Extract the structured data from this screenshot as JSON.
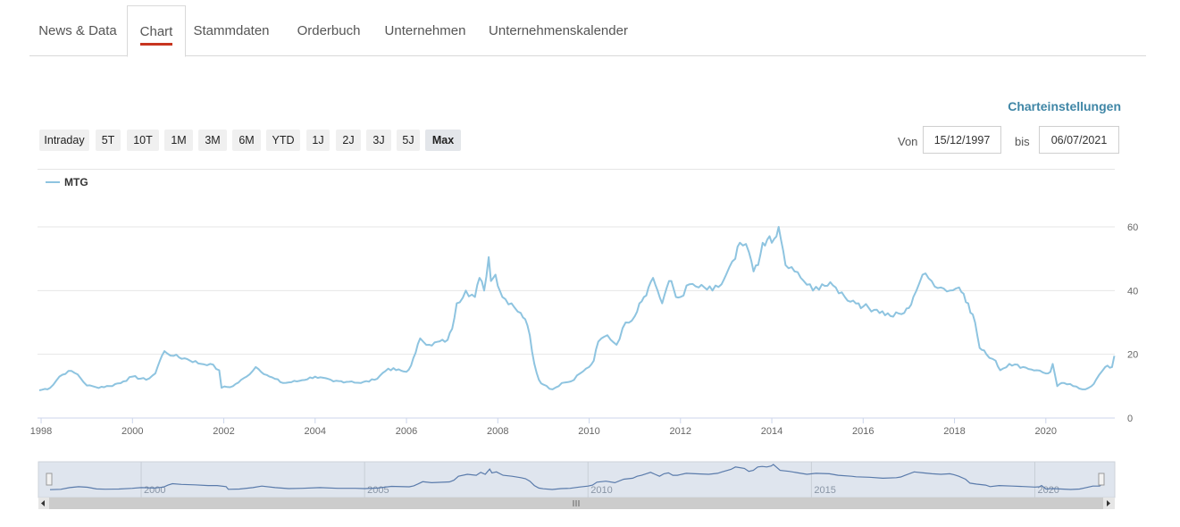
{
  "tabs": [
    {
      "label": "News & Data"
    },
    {
      "label": "Chart"
    },
    {
      "label": "Stammdaten"
    },
    {
      "label": "Orderbuch"
    },
    {
      "label": "Unternehmen"
    },
    {
      "label": "Unternehmenskalender"
    }
  ],
  "active_tab": "Chart",
  "settings_link": "Charteinstellungen",
  "ranges": [
    "Intraday",
    "5T",
    "10T",
    "1M",
    "3M",
    "6M",
    "YTD",
    "1J",
    "2J",
    "3J",
    "5J",
    "Max"
  ],
  "selected_range": "Max",
  "date_from": {
    "label": "Von",
    "value": "15/12/1997"
  },
  "date_to": {
    "label": "bis",
    "value": "06/07/2021"
  },
  "colors": {
    "series": "#8ec4e0",
    "navigator_line": "#5a7bab",
    "navigator_fill": "#dfe5ee",
    "active_tab_underline": "#c8351f",
    "link": "#3f86a6"
  },
  "navigator": {
    "tick_labels": [
      "2000",
      "2005",
      "2010",
      "2015",
      "2020"
    ],
    "grip_icon": "grip-lines-icon",
    "left_arrow_icon": "arrow-left-icon",
    "right_arrow_icon": "arrow-right-icon"
  },
  "chart_data": {
    "type": "line",
    "legend_position": "top-left",
    "series": [
      {
        "name": "MTG",
        "color": "#8ec4e0"
      }
    ],
    "xlabel": "",
    "ylabel": "",
    "ylim": [
      0,
      60
    ],
    "y_ticks": [
      "0",
      "20",
      "40",
      "60"
    ],
    "xlim": [
      1997.96,
      2021.51
    ],
    "x_ticks": [
      "1998",
      "2000",
      "2002",
      "2004",
      "2006",
      "2008",
      "2010",
      "2012",
      "2014",
      "2016",
      "2018",
      "2020"
    ],
    "grid": "horizontal",
    "points": [
      [
        1997.96,
        8.7
      ],
      [
        1998.2,
        9.5
      ],
      [
        1998.4,
        13.0
      ],
      [
        1998.6,
        14.8
      ],
      [
        1998.8,
        13.7
      ],
      [
        1999.0,
        10.2
      ],
      [
        1999.2,
        9.7
      ],
      [
        1999.5,
        10.0
      ],
      [
        1999.8,
        11.5
      ],
      [
        2000.0,
        13.0
      ],
      [
        2000.3,
        12.0
      ],
      [
        2000.5,
        14.0
      ],
      [
        2000.6,
        18.0
      ],
      [
        2000.7,
        21.0
      ],
      [
        2000.9,
        19.5
      ],
      [
        2001.2,
        18.5
      ],
      [
        2001.5,
        17.0
      ],
      [
        2001.7,
        17.0
      ],
      [
        2001.9,
        15.0
      ],
      [
        2001.95,
        9.5
      ],
      [
        2002.2,
        10.0
      ],
      [
        2002.5,
        13.0
      ],
      [
        2002.7,
        16.0
      ],
      [
        2003.0,
        13.0
      ],
      [
        2003.3,
        11.0
      ],
      [
        2003.6,
        11.5
      ],
      [
        2004.0,
        13.0
      ],
      [
        2004.4,
        11.5
      ],
      [
        2004.8,
        11.5
      ],
      [
        2005.0,
        11.0
      ],
      [
        2005.3,
        12.0
      ],
      [
        2005.6,
        15.5
      ],
      [
        2006.0,
        14.5
      ],
      [
        2006.1,
        16.5
      ],
      [
        2006.2,
        20.5
      ],
      [
        2006.3,
        25.0
      ],
      [
        2006.5,
        23.0
      ],
      [
        2006.9,
        24.5
      ],
      [
        2007.0,
        28.0
      ],
      [
        2007.1,
        36.0
      ],
      [
        2007.3,
        40.0
      ],
      [
        2007.5,
        38.0
      ],
      [
        2007.6,
        44.0
      ],
      [
        2007.7,
        40.0
      ],
      [
        2007.8,
        50.5
      ],
      [
        2007.85,
        43.0
      ],
      [
        2007.95,
        45.0
      ],
      [
        2008.1,
        38.0
      ],
      [
        2008.3,
        36.0
      ],
      [
        2008.5,
        33.0
      ],
      [
        2008.6,
        31.0
      ],
      [
        2008.7,
        26.0
      ],
      [
        2008.8,
        17.0
      ],
      [
        2008.9,
        12.0
      ],
      [
        2009.0,
        10.5
      ],
      [
        2009.2,
        9.0
      ],
      [
        2009.4,
        11.0
      ],
      [
        2009.6,
        11.5
      ],
      [
        2009.8,
        14.0
      ],
      [
        2010.0,
        16.0
      ],
      [
        2010.1,
        18.0
      ],
      [
        2010.2,
        24.0
      ],
      [
        2010.4,
        26.0
      ],
      [
        2010.6,
        23.0
      ],
      [
        2010.8,
        30.0
      ],
      [
        2011.0,
        32.0
      ],
      [
        2011.1,
        36.0
      ],
      [
        2011.2,
        38.0
      ],
      [
        2011.3,
        41.0
      ],
      [
        2011.4,
        44.0
      ],
      [
        2011.5,
        40.0
      ],
      [
        2011.6,
        36.0
      ],
      [
        2011.7,
        41.0
      ],
      [
        2011.8,
        43.0
      ],
      [
        2011.9,
        38.0
      ],
      [
        2012.0,
        38.0
      ],
      [
        2012.2,
        42.0
      ],
      [
        2012.4,
        41.0
      ],
      [
        2012.7,
        40.0
      ],
      [
        2012.9,
        42.0
      ],
      [
        2013.0,
        45.0
      ],
      [
        2013.2,
        50.0
      ],
      [
        2013.3,
        55.0
      ],
      [
        2013.5,
        52.0
      ],
      [
        2013.6,
        46.0
      ],
      [
        2013.7,
        48.0
      ],
      [
        2013.8,
        55.0
      ],
      [
        2013.9,
        56.0
      ],
      [
        2014.0,
        55.0
      ],
      [
        2014.1,
        57.0
      ],
      [
        2014.15,
        60.0
      ],
      [
        2014.2,
        56.0
      ],
      [
        2014.3,
        48.0
      ],
      [
        2014.5,
        46.0
      ],
      [
        2014.7,
        43.0
      ],
      [
        2014.9,
        40.0
      ],
      [
        2015.1,
        42.0
      ],
      [
        2015.4,
        41.0
      ],
      [
        2015.6,
        38.0
      ],
      [
        2015.9,
        36.0
      ],
      [
        2016.0,
        35.0
      ],
      [
        2016.3,
        34.0
      ],
      [
        2016.6,
        32.0
      ],
      [
        2016.9,
        33.0
      ],
      [
        2017.0,
        34.5
      ],
      [
        2017.1,
        38.0
      ],
      [
        2017.3,
        45.0
      ],
      [
        2017.5,
        43.0
      ],
      [
        2017.7,
        41.0
      ],
      [
        2017.9,
        40.0
      ],
      [
        2018.1,
        41.0
      ],
      [
        2018.2,
        39.0
      ],
      [
        2018.3,
        36.0
      ],
      [
        2018.45,
        30.0
      ],
      [
        2018.55,
        22.0
      ],
      [
        2018.7,
        20.0
      ],
      [
        2018.9,
        18.0
      ],
      [
        2019.0,
        15.0
      ],
      [
        2019.2,
        17.0
      ],
      [
        2019.5,
        16.0
      ],
      [
        2019.8,
        15.0
      ],
      [
        2020.0,
        14.0
      ],
      [
        2020.1,
        14.5
      ],
      [
        2020.15,
        17.0
      ],
      [
        2020.25,
        10.0
      ],
      [
        2020.4,
        11.0
      ],
      [
        2020.6,
        10.0
      ],
      [
        2020.8,
        9.0
      ],
      [
        2021.0,
        10.0
      ],
      [
        2021.1,
        12.0
      ],
      [
        2021.3,
        16.0
      ],
      [
        2021.45,
        16.0
      ],
      [
        2021.5,
        19.5
      ]
    ]
  }
}
